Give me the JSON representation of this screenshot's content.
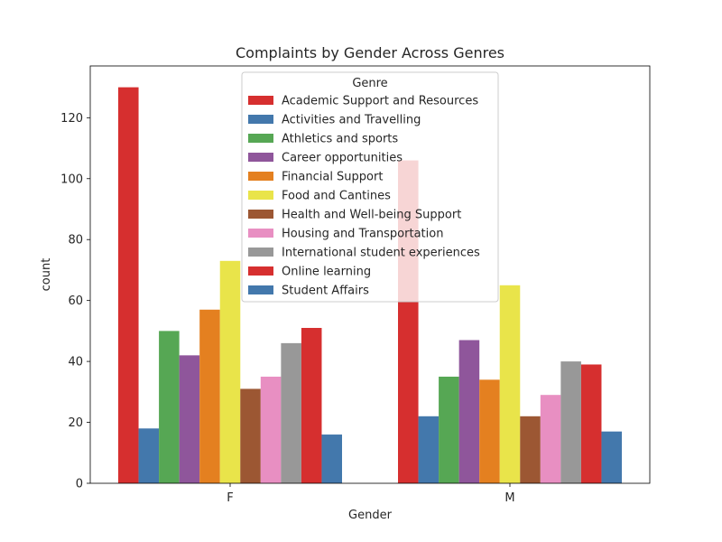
{
  "chart_data": {
    "type": "bar",
    "title": "Complaints by Gender Across Genres",
    "xlabel": "Gender",
    "ylabel": "count",
    "categories": [
      "F",
      "M"
    ],
    "ylim": [
      0,
      137
    ],
    "yticks": [
      0,
      20,
      40,
      60,
      80,
      100,
      120
    ],
    "grid": false,
    "legend": {
      "title": "Genre",
      "placement": "upper center"
    },
    "series": [
      {
        "name": "Academic Support and Resources",
        "color": "#d62f2f",
        "values": [
          130,
          106
        ]
      },
      {
        "name": "Activities and Travelling",
        "color": "#4378ac",
        "values": [
          18,
          22
        ]
      },
      {
        "name": "Athletics and sports",
        "color": "#56a754",
        "values": [
          50,
          35
        ]
      },
      {
        "name": "Career opportunities",
        "color": "#8f569b",
        "values": [
          42,
          47
        ]
      },
      {
        "name": "Financial Support",
        "color": "#e48020",
        "values": [
          57,
          34
        ]
      },
      {
        "name": "Food and Cantines",
        "color": "#e9e44a",
        "values": [
          73,
          65
        ]
      },
      {
        "name": "Health and Well-being Support",
        "color": "#9c5733",
        "values": [
          31,
          22
        ]
      },
      {
        "name": "Housing and Transportation",
        "color": "#e88fc2",
        "values": [
          35,
          29
        ]
      },
      {
        "name": "International student experiences",
        "color": "#989898",
        "values": [
          46,
          40
        ]
      },
      {
        "name": "Online learning",
        "color": "#d62f2f",
        "values": [
          51,
          39
        ]
      },
      {
        "name": "Student Affairs",
        "color": "#4378ac",
        "values": [
          16,
          17
        ]
      }
    ]
  }
}
